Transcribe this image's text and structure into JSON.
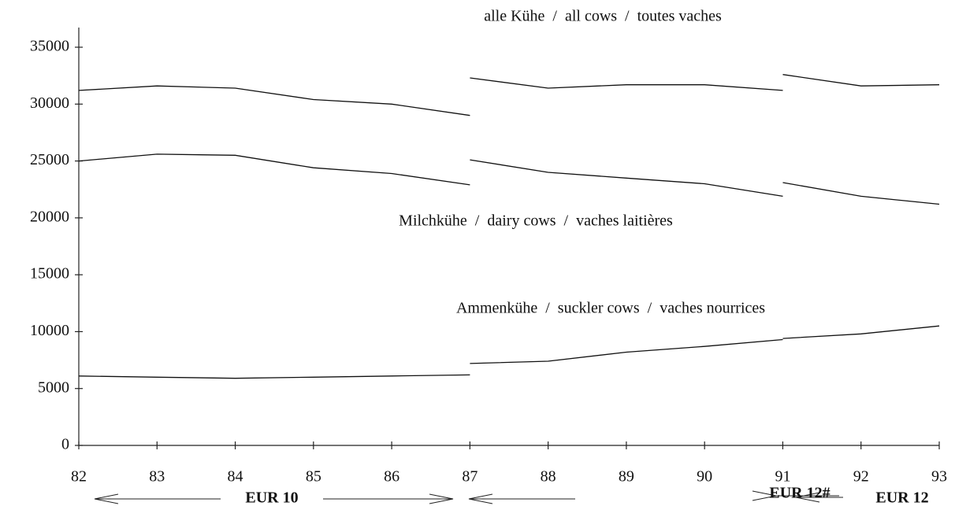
{
  "chart_data": {
    "type": "line",
    "x": [
      82,
      83,
      84,
      85,
      86,
      87,
      87,
      87,
      88,
      89,
      90,
      91,
      91,
      91,
      92,
      93
    ],
    "series": [
      {
        "name": "alle Kühe  /  all cows  /  toutes vaches",
        "color": "#111111",
        "values": [
          31200,
          31600,
          31400,
          30400,
          30000,
          29000,
          null,
          32300,
          31400,
          31700,
          31700,
          31200,
          null,
          32600,
          31600,
          31700
        ]
      },
      {
        "name": "Milchkühe  /  dairy cows  /  vaches laitières",
        "color": "#111111",
        "values": [
          25000,
          25600,
          25500,
          24400,
          23900,
          22900,
          null,
          25100,
          24000,
          23500,
          23000,
          21900,
          null,
          23100,
          21900,
          21200
        ]
      },
      {
        "name": "Ammenkühe  /  suckler cows  /  vaches nourrices",
        "color": "#111111",
        "values": [
          6100,
          6000,
          5900,
          6000,
          6100,
          6200,
          null,
          7200,
          7400,
          8200,
          8700,
          9300,
          null,
          9400,
          9800,
          10500
        ]
      }
    ],
    "xlim": [
      82,
      93
    ],
    "xticks": [
      82,
      83,
      84,
      85,
      86,
      87,
      88,
      89,
      90,
      91,
      92,
      93
    ],
    "ylim": [
      0,
      35000
    ],
    "yticks": [
      0,
      5000,
      10000,
      15000,
      20000,
      25000,
      30000,
      35000
    ],
    "annotations": [
      "EUR 10",
      "EUR 12#",
      "EUR 12"
    ]
  }
}
